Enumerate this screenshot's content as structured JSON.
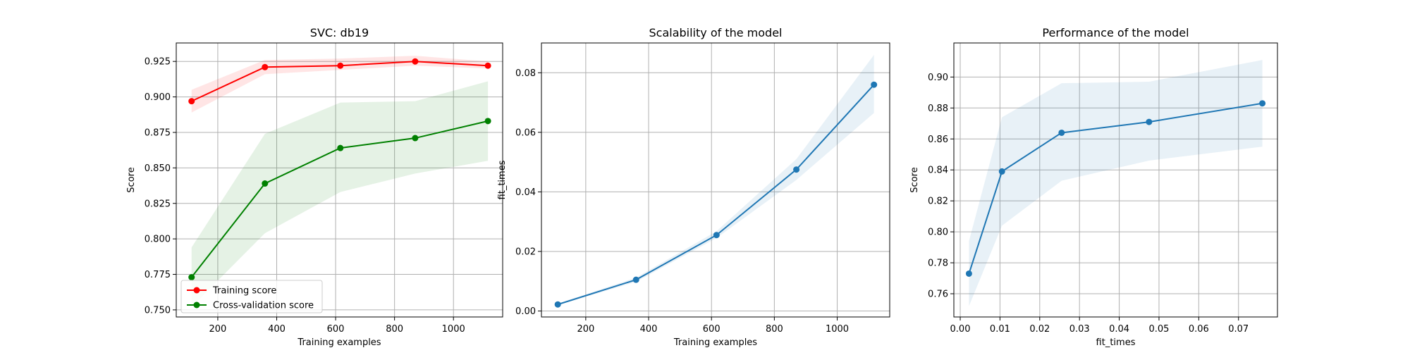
{
  "chart_data": [
    {
      "type": "line",
      "title": "SVC: db19",
      "xlabel": "Training examples",
      "ylabel": "Score",
      "xlim": [
        59,
        1167
      ],
      "ylim": [
        0.745,
        0.938
      ],
      "xticks": [
        200,
        400,
        600,
        800,
        1000
      ],
      "yticks": [
        0.75,
        0.775,
        0.8,
        0.825,
        0.85,
        0.875,
        0.9,
        0.925
      ],
      "ytick_decimals": 3,
      "grid": true,
      "legend": "lower-left",
      "series": [
        {
          "name": "Training score",
          "color": "#ff0000",
          "x": [
            111,
            360,
            616,
            870,
            1117
          ],
          "y": [
            0.897,
            0.921,
            0.922,
            0.925,
            0.922
          ],
          "lower": [
            0.889,
            0.916,
            0.919,
            0.922,
            0.92
          ],
          "upper": [
            0.905,
            0.926,
            0.927,
            0.929,
            0.925
          ]
        },
        {
          "name": "Cross-validation score",
          "color": "#008000",
          "x": [
            111,
            360,
            616,
            870,
            1117
          ],
          "y": [
            0.773,
            0.839,
            0.864,
            0.871,
            0.883
          ],
          "lower": [
            0.752,
            0.804,
            0.833,
            0.846,
            0.855
          ],
          "upper": [
            0.794,
            0.874,
            0.896,
            0.897,
            0.911
          ]
        }
      ]
    },
    {
      "type": "line",
      "title": "Scalability of the model",
      "xlabel": "Training examples",
      "ylabel": "fit_times",
      "xlim": [
        59,
        1167
      ],
      "ylim": [
        -0.002,
        0.09
      ],
      "xticks": [
        200,
        400,
        600,
        800,
        1000
      ],
      "yticks": [
        0.0,
        0.02,
        0.04,
        0.06,
        0.08
      ],
      "ytick_decimals": 2,
      "grid": true,
      "series": [
        {
          "color": "#1f77b4",
          "x": [
            111,
            360,
            616,
            870,
            1117
          ],
          "y": [
            0.0022,
            0.0105,
            0.0255,
            0.0475,
            0.076
          ],
          "lower": [
            0.002,
            0.0098,
            0.0245,
            0.044,
            0.0665
          ],
          "upper": [
            0.0025,
            0.0112,
            0.0268,
            0.051,
            0.086
          ]
        }
      ]
    },
    {
      "type": "line",
      "title": "Performance of the model",
      "xlabel": "fit_times",
      "ylabel": "Score",
      "xlim": [
        -0.0016,
        0.0798
      ],
      "ylim": [
        0.745,
        0.922
      ],
      "xticks": [
        0.0,
        0.01,
        0.02,
        0.03,
        0.04,
        0.05,
        0.06,
        0.07
      ],
      "xtick_decimals": 2,
      "yticks": [
        0.76,
        0.78,
        0.8,
        0.82,
        0.84,
        0.86,
        0.88,
        0.9
      ],
      "ytick_decimals": 2,
      "grid": true,
      "series": [
        {
          "color": "#1f77b4",
          "x": [
            0.0022,
            0.0105,
            0.0255,
            0.0475,
            0.076
          ],
          "y": [
            0.773,
            0.839,
            0.864,
            0.871,
            0.883
          ],
          "lower": [
            0.752,
            0.804,
            0.833,
            0.846,
            0.855
          ],
          "upper": [
            0.794,
            0.874,
            0.896,
            0.897,
            0.911
          ]
        }
      ]
    }
  ]
}
